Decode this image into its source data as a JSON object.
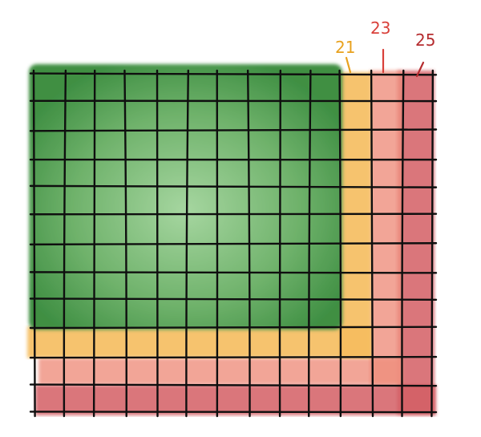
{
  "diagram": {
    "grid": {
      "columns": 13,
      "rows": 12
    },
    "regions": [
      {
        "name": "green-block",
        "color": "#4f9d4f",
        "highlight": "#9fd19a",
        "columns_span": [
          0,
          10
        ],
        "rows_span": [
          0,
          9
        ]
      },
      {
        "name": "yellow-band",
        "color": "#f6bd5e",
        "from_index": 10,
        "thickness": 1
      },
      {
        "name": "salmon-band",
        "color": "#ef8f7e",
        "from_index": 11,
        "thickness": 1
      },
      {
        "name": "red-band",
        "color": "#d45f65",
        "from_index": 12,
        "thickness": 1
      }
    ],
    "labels": [
      {
        "id": "label-21",
        "text": "21",
        "color": "#e8a11e"
      },
      {
        "id": "label-23",
        "text": "23",
        "color": "#d9403a"
      },
      {
        "id": "label-25",
        "text": "25",
        "color": "#b52c2f"
      }
    ],
    "line_color": "#0f0f0f"
  }
}
